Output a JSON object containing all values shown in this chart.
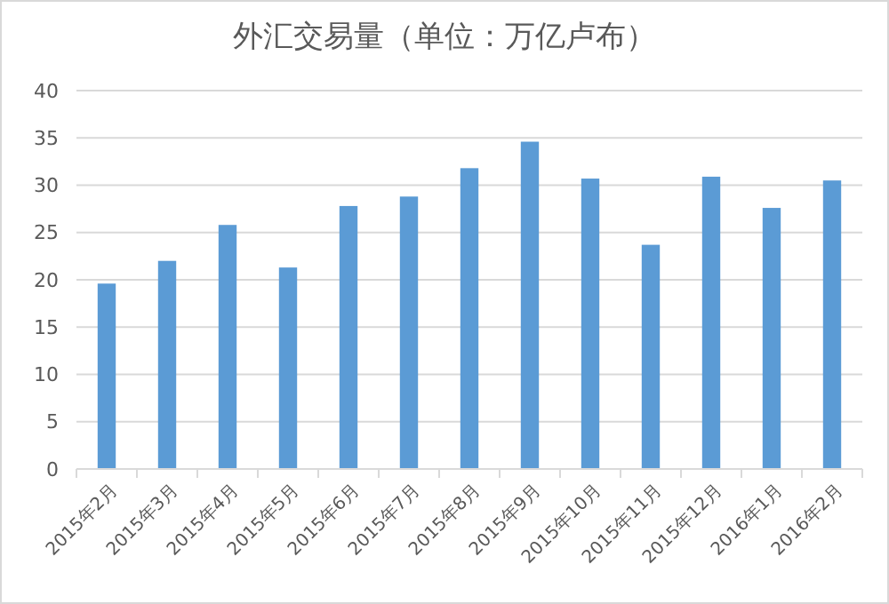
{
  "chart_data": {
    "type": "bar",
    "title": "外汇交易量（单位：万亿卢布）",
    "categories": [
      "2015年2月",
      "2015年3月",
      "2015年4月",
      "2015年5月",
      "2015年6月",
      "2015年7月",
      "2015年8月",
      "2015年9月",
      "2015年10月",
      "2015年11月",
      "2015年12月",
      "2016年1月",
      "2016年2月"
    ],
    "values": [
      19.6,
      22.0,
      25.8,
      21.3,
      27.8,
      28.8,
      31.8,
      34.6,
      30.7,
      23.7,
      30.9,
      27.6,
      30.5
    ],
    "color": "#5b9bd5",
    "ylim": [
      0,
      40
    ],
    "yticks": [
      0,
      5,
      10,
      15,
      20,
      25,
      30,
      35,
      40
    ],
    "grid": "y"
  }
}
